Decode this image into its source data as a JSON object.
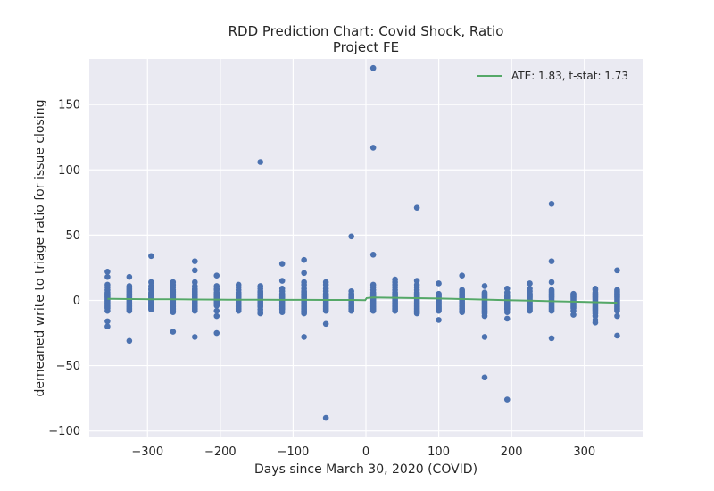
{
  "chart_data": {
    "type": "scatter",
    "title": "RDD Prediction Chart: Covid Shock, Ratio",
    "subtitle": "Project FE",
    "xlabel": "Days since March 30, 2020 (COVID)",
    "ylabel": "demeaned write to triage ratio for issue closing",
    "xlim": [
      -380,
      380
    ],
    "ylim": [
      -105,
      185
    ],
    "xticks": [
      -300,
      -200,
      -100,
      0,
      100,
      200,
      300
    ],
    "yticks": [
      -100,
      -50,
      0,
      50,
      100,
      150
    ],
    "xtick_labels": [
      "−300",
      "−200",
      "−100",
      "0",
      "100",
      "200",
      "300"
    ],
    "ytick_labels": [
      "−100",
      "−50",
      "0",
      "50",
      "100",
      "150"
    ],
    "grid": true,
    "legend_position": "top-right",
    "colors": {
      "points": "#4c72b0",
      "line": "#55a868",
      "background": "#eaeaf2",
      "grid": "#ffffff"
    },
    "scatter": {
      "columns": [
        {
          "x": -355,
          "y": [
            22,
            18,
            12,
            10,
            8,
            6,
            5,
            4,
            3,
            2,
            1,
            0,
            -1,
            -2,
            -3,
            -4,
            -5,
            -6,
            -8,
            -16,
            -20
          ]
        },
        {
          "x": -325,
          "y": [
            18,
            11,
            10,
            9,
            8,
            7,
            6,
            5,
            4,
            3,
            2,
            1,
            0,
            -1,
            -2,
            -3,
            -4,
            -5,
            -6,
            -7,
            -8,
            -31
          ]
        },
        {
          "x": -295,
          "y": [
            34,
            14,
            11,
            9,
            8,
            6,
            5,
            4,
            3,
            2,
            1,
            0,
            -1,
            -2,
            -3,
            -4,
            -5,
            -6,
            -7
          ]
        },
        {
          "x": -265,
          "y": [
            14,
            12,
            10,
            8,
            7,
            6,
            5,
            4,
            3,
            2,
            1,
            0,
            -1,
            -2,
            -3,
            -4,
            -5,
            -6,
            -7,
            -8,
            -9,
            -24
          ]
        },
        {
          "x": -235,
          "y": [
            30,
            23,
            14,
            11,
            9,
            8,
            7,
            6,
            5,
            4,
            3,
            2,
            1,
            0,
            -1,
            -2,
            -3,
            -4,
            -5,
            -6,
            -7,
            -8,
            -28
          ]
        },
        {
          "x": -205,
          "y": [
            19,
            11,
            9,
            8,
            6,
            5,
            4,
            3,
            2,
            1,
            0,
            -1,
            -2,
            -3,
            -4,
            -8,
            -12,
            -25
          ]
        },
        {
          "x": -175,
          "y": [
            12,
            10,
            8,
            6,
            5,
            4,
            3,
            2,
            1,
            0,
            -1,
            -2,
            -3,
            -4,
            -5,
            -6,
            -7,
            -8
          ]
        },
        {
          "x": -145,
          "y": [
            106,
            11,
            9,
            7,
            6,
            5,
            4,
            3,
            2,
            1,
            0,
            -1,
            -2,
            -3,
            -4,
            -5,
            -7,
            -9,
            -10
          ]
        },
        {
          "x": -115,
          "y": [
            28,
            15,
            9,
            7,
            5,
            4,
            3,
            2,
            1,
            0,
            -1,
            -2,
            -3,
            -4,
            -5,
            -6,
            -7,
            -9
          ]
        },
        {
          "x": -85,
          "y": [
            31,
            21,
            14,
            12,
            9,
            7,
            6,
            5,
            4,
            3,
            2,
            1,
            0,
            -1,
            -2,
            -3,
            -4,
            -5,
            -6,
            -7,
            -8,
            -9,
            -10,
            -28
          ]
        },
        {
          "x": -55,
          "y": [
            14,
            12,
            9,
            7,
            5,
            4,
            3,
            2,
            1,
            0,
            -1,
            -2,
            -3,
            -4,
            -5,
            -6,
            -7,
            -8,
            -18,
            -90
          ]
        },
        {
          "x": -20,
          "y": [
            49,
            7,
            5,
            4,
            3,
            2,
            1,
            0,
            -1,
            -2,
            -3,
            -4,
            -5,
            -6,
            -7,
            -8
          ]
        },
        {
          "x": 10,
          "y": [
            178,
            117,
            35,
            12,
            10,
            8,
            6,
            5,
            4,
            3,
            2,
            1,
            0,
            -1,
            -2,
            -3,
            -4,
            -5,
            -6,
            -7,
            -8
          ]
        },
        {
          "x": 40,
          "y": [
            16,
            14,
            12,
            10,
            8,
            6,
            5,
            4,
            3,
            2,
            1,
            0,
            -1,
            -2,
            -3,
            -4,
            -5,
            -6,
            -7,
            -8
          ]
        },
        {
          "x": 70,
          "y": [
            71,
            15,
            12,
            10,
            8,
            6,
            5,
            4,
            3,
            2,
            1,
            0,
            -1,
            -2,
            -3,
            -4,
            -5,
            -6,
            -7,
            -8,
            -9,
            -10
          ]
        },
        {
          "x": 100,
          "y": [
            13,
            5,
            4,
            3,
            2,
            1,
            0,
            -1,
            -2,
            -3,
            -4,
            -5,
            -6,
            -7,
            -8,
            -15
          ]
        },
        {
          "x": 132,
          "y": [
            19,
            8,
            7,
            6,
            5,
            4,
            3,
            2,
            1,
            0,
            -1,
            -2,
            -3,
            -4,
            -5,
            -6,
            -7,
            -8,
            -9
          ]
        },
        {
          "x": 163,
          "y": [
            11,
            6,
            5,
            4,
            3,
            2,
            1,
            0,
            -1,
            -2,
            -3,
            -4,
            -5,
            -6,
            -7,
            -8,
            -9,
            -10,
            -12,
            -28,
            -59
          ]
        },
        {
          "x": 194,
          "y": [
            9,
            6,
            4,
            3,
            2,
            1,
            0,
            -1,
            -2,
            -3,
            -4,
            -5,
            -6,
            -7,
            -9,
            -14,
            -76
          ]
        },
        {
          "x": 225,
          "y": [
            13,
            9,
            7,
            5,
            4,
            3,
            2,
            1,
            0,
            -1,
            -2,
            -3,
            -4,
            -5,
            -6,
            -7,
            -8
          ]
        },
        {
          "x": 255,
          "y": [
            74,
            30,
            14,
            8,
            7,
            6,
            5,
            4,
            3,
            2,
            1,
            0,
            -1,
            -2,
            -3,
            -4,
            -5,
            -6,
            -7,
            -8,
            -29
          ]
        },
        {
          "x": 285,
          "y": [
            5,
            4,
            3,
            2,
            1,
            0,
            -1,
            -2,
            -3,
            -4,
            -5,
            -6,
            -8,
            -11
          ]
        },
        {
          "x": 315,
          "y": [
            9,
            8,
            6,
            5,
            4,
            3,
            2,
            1,
            0,
            -1,
            -2,
            -3,
            -4,
            -5,
            -6,
            -7,
            -8,
            -10,
            -12,
            -15,
            -17
          ]
        },
        {
          "x": 345,
          "y": [
            23,
            8,
            7,
            6,
            5,
            4,
            3,
            2,
            1,
            0,
            -1,
            -2,
            -3,
            -4,
            -5,
            -6,
            -7,
            -8,
            -12,
            -27
          ]
        }
      ]
    },
    "series": [
      {
        "name": "ATE: 1.83, t-stat: 1.73",
        "type": "line",
        "x": [
          -355,
          -325,
          -295,
          -265,
          -235,
          -205,
          -175,
          -145,
          -115,
          -85,
          -55,
          -20,
          -1,
          1,
          10,
          40,
          70,
          100,
          132,
          163,
          194,
          225,
          255,
          285,
          315,
          345
        ],
        "y": [
          1.2,
          1.0,
          0.9,
          0.8,
          0.7,
          0.6,
          0.5,
          0.5,
          0.4,
          0.4,
          0.3,
          0.3,
          0.2,
          1.8,
          2.2,
          2.0,
          1.7,
          1.4,
          1.0,
          0.6,
          0.2,
          -0.2,
          -0.6,
          -1.0,
          -1.4,
          -1.8
        ]
      }
    ]
  }
}
